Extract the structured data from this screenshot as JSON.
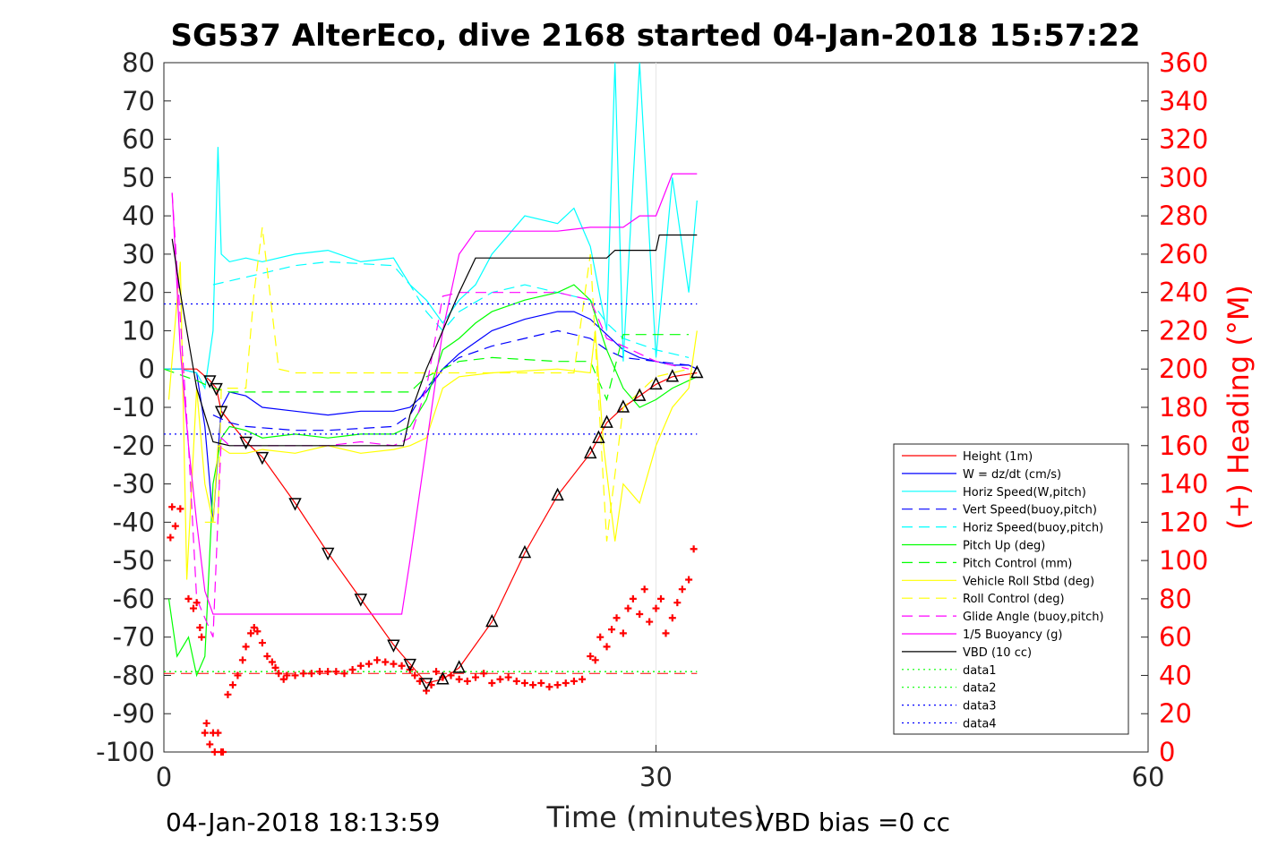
{
  "chart_data": {
    "type": "line",
    "title": "SG537 AlterEco, dive 2168 started 04-Jan-2018 15:57:22",
    "xlabel": "Time (minutes)",
    "ylabel_right": "(+) Heading (°M)",
    "xlim": [
      0,
      60
    ],
    "ylim": [
      -100,
      80
    ],
    "ylim_right": [
      0,
      360
    ],
    "x_ticks": [
      "0",
      "30",
      "60"
    ],
    "y_ticks": [
      "80",
      "70",
      "60",
      "50",
      "40",
      "30",
      "20",
      "10",
      "0",
      "-10",
      "-20",
      "-30",
      "-40",
      "-50",
      "-60",
      "-70",
      "-80",
      "-90",
      "-100"
    ],
    "y2_ticks": [
      "360",
      "340",
      "320",
      "300",
      "280",
      "260",
      "240",
      "220",
      "200",
      "180",
      "160",
      "140",
      "120",
      "100",
      "80",
      "60",
      "40",
      "20",
      "0"
    ],
    "footer_left": "04-Jan-2018 18:13:59",
    "footer_right": "VBD bias =0 cc",
    "legend_position": "lower-right",
    "colors": {
      "red": "#ff0000",
      "blue": "#0000ff",
      "cyan": "#00ffff",
      "green": "#00ff00",
      "yellow": "#ffff00",
      "magenta": "#ff00ff",
      "black": "#000000"
    },
    "legend": [
      {
        "label": "Height (1m)",
        "color": "#ff0000",
        "style": "solid"
      },
      {
        "label": "W = dz/dt (cm/s)",
        "color": "#0000ff",
        "style": "solid"
      },
      {
        "label": "Horiz Speed(W,pitch)",
        "color": "#00ffff",
        "style": "solid"
      },
      {
        "label": "Vert Speed(buoy,pitch)",
        "color": "#0000ff",
        "style": "dashed"
      },
      {
        "label": "Horiz Speed(buoy,pitch)",
        "color": "#00ffff",
        "style": "dashed"
      },
      {
        "label": "Pitch Up (deg)",
        "color": "#00ff00",
        "style": "solid"
      },
      {
        "label": "Pitch Control (mm)",
        "color": "#00ff00",
        "style": "dashed"
      },
      {
        "label": "Vehicle Roll Stbd (deg)",
        "color": "#ffff00",
        "style": "solid"
      },
      {
        "label": "Roll Control (deg)",
        "color": "#ffff00",
        "style": "dashed"
      },
      {
        "label": "Glide Angle (buoy,pitch)",
        "color": "#ff00ff",
        "style": "dashed"
      },
      {
        "label": "1/5 Buoyancy (g)",
        "color": "#ff00ff",
        "style": "solid"
      },
      {
        "label": "VBD (10 cc)",
        "color": "#000000",
        "style": "solid"
      },
      {
        "label": "data1",
        "color": "#00ff00",
        "style": "dotted"
      },
      {
        "label": "data2",
        "color": "#00ff00",
        "style": "dotted"
      },
      {
        "label": "data3",
        "color": "#0000ff",
        "style": "dotted"
      },
      {
        "label": "data4",
        "color": "#0000ff",
        "style": "dotted"
      }
    ],
    "series": [
      {
        "name": "Height (1m)",
        "color": "#ff0000",
        "style": "solid",
        "x": [
          0,
          1,
          2,
          2.8,
          3.2,
          3.5,
          5,
          6,
          8,
          10,
          12,
          14,
          15,
          16,
          17,
          18,
          20,
          22,
          24,
          26,
          26.5,
          27,
          28,
          29,
          30,
          31,
          32.5
        ],
        "y": [
          0,
          0,
          0,
          -3,
          -5,
          -11,
          -19,
          -23,
          -35,
          -48,
          -60,
          -72,
          -77,
          -82,
          -81,
          -78,
          -66,
          -48,
          -33,
          -22,
          -18,
          -14,
          -10,
          -7,
          -4,
          -2,
          -1
        ]
      },
      {
        "name": "W = dz/dt (cm/s)",
        "color": "#0000ff",
        "style": "solid",
        "x": [
          0,
          1,
          2,
          2.5,
          3,
          3.5,
          4,
          5,
          6,
          8,
          10,
          12,
          14,
          15,
          16,
          17,
          18,
          19,
          20,
          22,
          24,
          25,
          26,
          27,
          28,
          29,
          30,
          31,
          32,
          32.5
        ],
        "y": [
          0,
          0,
          -1,
          -15,
          -40,
          -10,
          -6,
          -7,
          -10,
          -11,
          -12,
          -11,
          -11,
          -10,
          -6,
          0,
          4,
          7,
          10,
          13,
          15,
          15,
          13,
          9,
          5,
          3,
          2,
          1,
          1,
          0
        ]
      },
      {
        "name": "Horiz Speed(W,pitch)",
        "color": "#00ffff",
        "style": "solid",
        "x": [
          0,
          1,
          2,
          2.5,
          3,
          3.3,
          3.5,
          4,
          5,
          6,
          8,
          10,
          12,
          14,
          15,
          16,
          17,
          18,
          19,
          20,
          22,
          24,
          25,
          26,
          27,
          27.5,
          28,
          29,
          30,
          31,
          32,
          32.5
        ],
        "y": [
          0,
          0,
          -1,
          -5,
          10,
          58,
          30,
          28,
          29,
          28,
          30,
          31,
          28,
          29,
          22,
          18,
          12,
          18,
          22,
          30,
          40,
          38,
          42,
          32,
          10,
          80,
          2,
          80,
          3,
          50,
          20,
          44
        ]
      },
      {
        "name": "Vert Speed(buoy,pitch)",
        "color": "#0000ff",
        "style": "dashed",
        "x": [
          3,
          4,
          5,
          8,
          10,
          14,
          15,
          16,
          17,
          18,
          20,
          22,
          24,
          26,
          27,
          28,
          30,
          32
        ],
        "y": [
          -12,
          -14,
          -15,
          -16,
          -16,
          -15,
          -12,
          -5,
          0,
          3,
          6,
          8,
          10,
          8,
          5,
          3,
          2,
          1
        ]
      },
      {
        "name": "Horiz Speed(buoy,pitch)",
        "color": "#00ffff",
        "style": "dashed",
        "x": [
          3,
          4,
          5,
          8,
          10,
          14,
          15,
          16,
          17,
          18,
          20,
          22,
          24,
          26,
          27,
          28,
          30,
          32
        ],
        "y": [
          22,
          23,
          24,
          27,
          28,
          27,
          22,
          15,
          10,
          15,
          20,
          22,
          20,
          18,
          12,
          8,
          5,
          3
        ]
      },
      {
        "name": "Pitch Up (deg)",
        "color": "#00ff00",
        "style": "solid",
        "x": [
          0.3,
          0.8,
          1.5,
          2,
          2.5,
          3,
          3.5,
          4,
          5,
          6,
          8,
          10,
          12,
          14,
          15,
          16,
          17,
          18,
          19,
          20,
          22,
          24,
          25,
          26,
          27,
          28,
          29,
          30,
          31,
          32,
          32.5
        ],
        "y": [
          -60,
          -75,
          -70,
          -80,
          -75,
          -30,
          -18,
          -15,
          -16,
          -18,
          -17,
          -18,
          -17,
          -17,
          -15,
          -8,
          5,
          8,
          12,
          15,
          18,
          20,
          22,
          18,
          5,
          -5,
          -10,
          -8,
          -5,
          -3,
          -2
        ]
      },
      {
        "name": "Pitch Control (mm)",
        "color": "#00ff00",
        "style": "dashed",
        "x": [
          0,
          2,
          3,
          4,
          8,
          12,
          15,
          16,
          17,
          18,
          20,
          24,
          26,
          27,
          28,
          30,
          32
        ],
        "y": [
          0,
          -3,
          -5,
          -6,
          -6,
          -6,
          -6,
          -2,
          0,
          2,
          3,
          2,
          2,
          -8,
          9,
          9,
          9
        ]
      },
      {
        "name": "Vehicle Roll Stbd (deg)",
        "color": "#ffff00",
        "style": "solid",
        "x": [
          0.3,
          1,
          1.4,
          2,
          2.5,
          3,
          3.3,
          4,
          5,
          6,
          8,
          10,
          12,
          14,
          15,
          16,
          17,
          18,
          20,
          24,
          26,
          26.3,
          26.8,
          27.5,
          28,
          29,
          30,
          31,
          32,
          32.5
        ],
        "y": [
          -8,
          28,
          -55,
          -5,
          -30,
          -40,
          -20,
          -22,
          -22,
          -21,
          -22,
          -20,
          -22,
          -21,
          -20,
          -18,
          -5,
          -2,
          -1,
          0,
          -1,
          10,
          -20,
          -45,
          -30,
          -35,
          -20,
          -10,
          -5,
          10
        ]
      },
      {
        "name": "Roll Control (deg)",
        "color": "#ffff00",
        "style": "dashed",
        "x": [
          2.5,
          3,
          3.3,
          3.5,
          5,
          5.5,
          6,
          7,
          8,
          10,
          12,
          14,
          15,
          16,
          17,
          20,
          25,
          26,
          27,
          28,
          30,
          32
        ],
        "y": [
          -40,
          -40,
          -40,
          -5,
          -5,
          20,
          37,
          0,
          -1,
          -1,
          -1,
          -1,
          -1,
          -1,
          -1,
          -1,
          -1,
          30,
          -45,
          -10,
          -2,
          0
        ]
      },
      {
        "name": "Glide Angle (buoy,pitch)",
        "color": "#ff00ff",
        "style": "dashed",
        "x": [
          0.5,
          1.5,
          2,
          2.5,
          3,
          3.5,
          4,
          5,
          8,
          10,
          12,
          14,
          15,
          16,
          17,
          18,
          20,
          24,
          26,
          27,
          28,
          30,
          32
        ],
        "y": [
          46,
          -20,
          -60,
          -65,
          -70,
          -18,
          -20,
          -20,
          -20,
          -20,
          -19,
          -20,
          -18,
          -5,
          19,
          20,
          20,
          20,
          18,
          8,
          6,
          2,
          0
        ]
      },
      {
        "name": "1/5 Buoyancy (g)",
        "color": "#ff00ff",
        "style": "solid",
        "x": [
          0.5,
          1,
          1.5,
          2,
          2.5,
          3,
          4,
          6,
          8,
          10,
          12,
          14,
          14.5,
          15,
          16,
          17,
          18,
          19,
          20,
          22,
          24,
          26,
          27,
          28,
          29,
          30,
          31,
          32,
          32.5
        ],
        "y": [
          46,
          5,
          -20,
          -40,
          -58,
          -64,
          -64,
          -64,
          -64,
          -64,
          -64,
          -64,
          -64,
          -50,
          -20,
          10,
          30,
          36,
          36,
          36,
          36,
          37,
          37,
          37,
          40,
          40,
          51,
          51,
          51
        ]
      },
      {
        "name": "VBD (10 cc)",
        "color": "#000000",
        "style": "solid",
        "x": [
          0.5,
          1,
          2,
          3,
          4,
          6,
          8,
          10,
          12,
          14,
          14.6,
          15,
          16,
          17,
          18,
          19,
          20,
          24,
          26,
          27,
          27.5,
          28,
          29,
          30,
          30.2,
          31,
          32,
          32.5
        ],
        "y": [
          34,
          20,
          -5,
          -19,
          -20,
          -20,
          -20,
          -20,
          -20,
          -20,
          -20,
          -12,
          0,
          10,
          20,
          29,
          29,
          29,
          29,
          29,
          31,
          31,
          31,
          31,
          35,
          35,
          35,
          35
        ]
      },
      {
        "name": "data1",
        "color": "#00ff00",
        "style": "dotted",
        "x": [
          0,
          32.5
        ],
        "y": [
          -79,
          -79
        ]
      },
      {
        "name": "data2",
        "color": "#00ff00",
        "style": "dotted",
        "x": [
          0,
          32.5
        ],
        "y": [
          -79,
          -79
        ]
      },
      {
        "name": "data3",
        "color": "#0000ff",
        "style": "dotted",
        "x": [
          0,
          32.5
        ],
        "y": [
          17,
          17
        ]
      },
      {
        "name": "data4",
        "color": "#0000ff",
        "style": "dotted",
        "x": [
          0,
          32.5
        ],
        "y": [
          -17,
          -17
        ]
      }
    ],
    "heading_mean": {
      "color": "#ff0000",
      "style": "dashed",
      "x": [
        0,
        32.5
      ],
      "y": [
        41,
        41
      ]
    },
    "heading_points": {
      "color": "#ff0000",
      "marker": "+",
      "x": [
        0.4,
        0.5,
        0.7,
        1,
        1.5,
        1.8,
        2,
        2.2,
        2.3,
        2.5,
        2.6,
        2.8,
        3,
        3.1,
        3.3,
        3.5,
        3.6,
        3.9,
        4.2,
        4.5,
        4.8,
        5,
        5.3,
        5.5,
        5.7,
        6,
        6.3,
        6.6,
        6.8,
        7,
        7.3,
        7.5,
        8,
        8.5,
        9,
        9.5,
        10,
        10.5,
        11,
        11.5,
        12,
        12.5,
        13,
        13.5,
        14,
        14.5,
        15,
        15.3,
        15.6,
        16,
        16.3,
        16.6,
        17,
        17.5,
        18,
        18.5,
        19,
        19.5,
        20,
        20.5,
        21,
        21.5,
        22,
        22.5,
        23,
        23.5,
        24,
        24.5,
        25,
        25.5,
        26,
        26.3,
        26.6,
        27,
        27.3,
        27.6,
        28,
        28.3,
        28.6,
        29,
        29.3,
        29.6,
        30,
        30.3,
        30.6,
        31,
        31.3,
        31.6,
        32,
        32.3
      ],
      "y": [
        112,
        128,
        118,
        127,
        80,
        75,
        78,
        65,
        60,
        10,
        15,
        4,
        10,
        0,
        10,
        0,
        0,
        30,
        35,
        40,
        48,
        55,
        62,
        65,
        63,
        57,
        50,
        47,
        44,
        41,
        38,
        40,
        40,
        41,
        41,
        42,
        42,
        42,
        41,
        43,
        45,
        46,
        48,
        47,
        46,
        45,
        43,
        40,
        37,
        32,
        35,
        42,
        39,
        40,
        38,
        37,
        39,
        41,
        36,
        38,
        39,
        37,
        36,
        35,
        36,
        34,
        35,
        36,
        37,
        38,
        50,
        48,
        60,
        55,
        64,
        70,
        62,
        75,
        80,
        72,
        85,
        68,
        75,
        80,
        62,
        70,
        78,
        85,
        90,
        106
      ]
    }
  }
}
